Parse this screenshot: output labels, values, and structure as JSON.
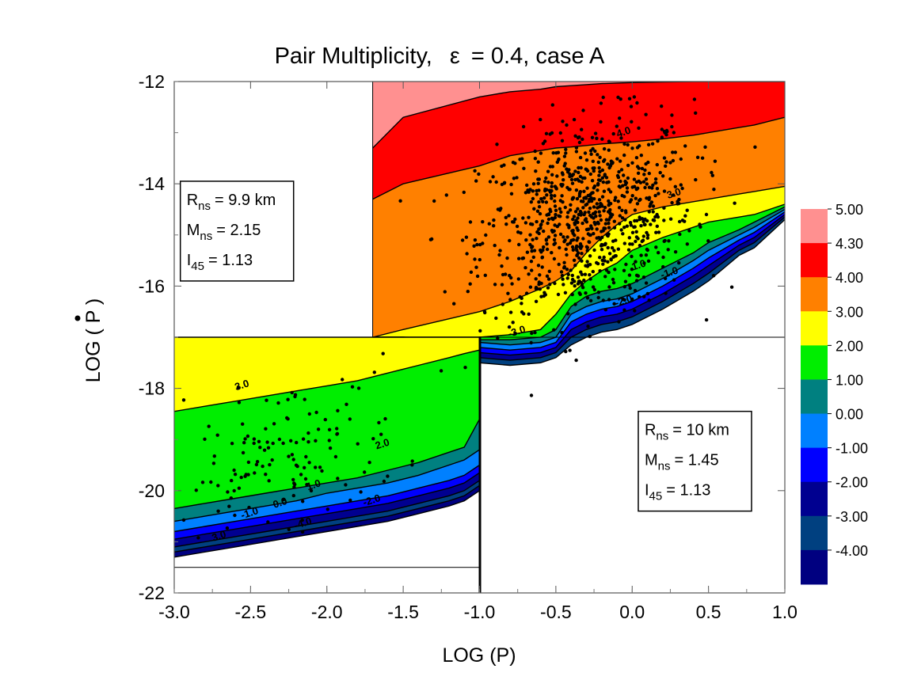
{
  "chart_data": {
    "type": "contour",
    "title_prefix": "Pair Multiplicity,",
    "title_symbol": "ε",
    "title_suffix": "= 0.4, case A",
    "xlabel": "LOG (P)",
    "ylabel_left": "LOG (",
    "ylabel_var": "P",
    "ylabel_right": ")",
    "xlim": [
      -3.0,
      1.0
    ],
    "ylim": [
      -22,
      -12
    ],
    "x_ticks": [
      {
        "v": -3.0,
        "label": "-3.0"
      },
      {
        "v": -2.5,
        "label": "-2.5"
      },
      {
        "v": -2.0,
        "label": "-2.0"
      },
      {
        "v": -1.5,
        "label": "-1.5"
      },
      {
        "v": -1.0,
        "label": "-1.0"
      },
      {
        "v": -0.5,
        "label": "-0.5"
      },
      {
        "v": 0.0,
        "label": "0.0"
      },
      {
        "v": 0.5,
        "label": "0.5"
      },
      {
        "v": 1.0,
        "label": "1.0"
      }
    ],
    "y_ticks": [
      {
        "v": -12,
        "label": "-12"
      },
      {
        "v": -14,
        "label": "-14"
      },
      {
        "v": -16,
        "label": "-16"
      },
      {
        "v": -18,
        "label": "-18"
      },
      {
        "v": -20,
        "label": "-20"
      },
      {
        "v": -22,
        "label": "-22"
      }
    ],
    "colorbar": [
      {
        "label": "5.00",
        "color": "#ff9090"
      },
      {
        "label": "4.30",
        "color": "#ff0000"
      },
      {
        "label": "4.00",
        "color": "#ff8000"
      },
      {
        "label": "3.00",
        "color": "#ffff00"
      },
      {
        "label": "2.00",
        "color": "#00ee00"
      },
      {
        "label": "1.00",
        "color": "#008080"
      },
      {
        "label": "0.00",
        "color": "#0080ff"
      },
      {
        "label": "-1.00",
        "color": "#0000ff"
      },
      {
        "label": "-2.00",
        "color": "#000090"
      },
      {
        "label": "-3.00",
        "color": "#004080"
      },
      {
        "label": "-4.00",
        "color": "#000080"
      }
    ],
    "regions": [
      {
        "name": "upper-right",
        "xmin": -1.7,
        "xmax": 1.0,
        "ymin": -17.0,
        "ymax": -12.0,
        "vertical_bottom_at": -1.0,
        "x": [
          -1.7,
          -1.5,
          -1.0,
          -0.8,
          -0.6,
          -0.5,
          -0.4,
          -0.3,
          -0.2,
          -0.1,
          0.0,
          0.2,
          0.4,
          0.5,
          0.7,
          0.8,
          1.0
        ],
        "boundaries": [
          {
            "level": "4.3",
            "y": [
              -13.3,
              -12.7,
              -12.3,
              -12.2,
              -12.15,
              -12.1,
              -12.08,
              -12.06,
              -12.04,
              -12.03,
              -12.02,
              -12.01,
              -12.0,
              -12.0,
              -12.0,
              -12.0,
              -12.0
            ]
          },
          {
            "level": "4.0",
            "y": [
              -14.3,
              -14.0,
              -13.65,
              -13.45,
              -13.35,
              -13.3,
              -13.28,
              -13.25,
              -13.22,
              -13.2,
              -13.18,
              -13.12,
              -13.05,
              -13.0,
              -12.9,
              -12.85,
              -12.7
            ]
          },
          {
            "level": "3.0",
            "y": [
              -17.0,
              -16.85,
              -16.5,
              -16.3,
              -16.05,
              -15.9,
              -15.7,
              -15.35,
              -15.05,
              -14.8,
              -14.6,
              -14.45,
              -14.35,
              -14.3,
              -14.2,
              -14.15,
              -14.05
            ]
          },
          {
            "level": "2.0",
            "y": [
              -17.0,
              -17.0,
              -17.0,
              -16.95,
              -16.85,
              -16.55,
              -16.15,
              -15.9,
              -15.7,
              -15.55,
              -15.3,
              -15.05,
              -14.85,
              -14.75,
              -14.65,
              -14.6,
              -14.4
            ]
          },
          {
            "level": "1.0",
            "y": [
              -17.0,
              -17.0,
              -17.05,
              -17.05,
              -17.0,
              -16.85,
              -16.4,
              -16.2,
              -16.1,
              -16.05,
              -15.95,
              -15.65,
              -15.35,
              -15.15,
              -14.9,
              -14.75,
              -14.45
            ]
          },
          {
            "level": "0.0",
            "y": [
              -17.0,
              -17.0,
              -17.1,
              -17.15,
              -17.1,
              -17.0,
              -16.55,
              -16.4,
              -16.3,
              -16.25,
              -16.15,
              -15.85,
              -15.5,
              -15.3,
              -15.0,
              -14.85,
              -14.5
            ]
          },
          {
            "level": "-1.0",
            "y": [
              -17.0,
              -17.0,
              -17.2,
              -17.25,
              -17.2,
              -17.1,
              -16.7,
              -16.55,
              -16.45,
              -16.4,
              -16.3,
              -16.0,
              -15.65,
              -15.45,
              -15.1,
              -14.95,
              -14.55
            ]
          },
          {
            "level": "-2.0",
            "y": [
              -17.0,
              -17.0,
              -17.3,
              -17.35,
              -17.3,
              -17.2,
              -16.85,
              -16.7,
              -16.6,
              -16.55,
              -16.45,
              -16.15,
              -15.8,
              -15.6,
              -15.2,
              -15.05,
              -14.6
            ]
          },
          {
            "level": "-3.0",
            "y": [
              -17.0,
              -17.0,
              -17.4,
              -17.45,
              -17.4,
              -17.3,
              -17.0,
              -16.85,
              -16.75,
              -16.7,
              -16.6,
              -16.3,
              -15.95,
              -15.75,
              -15.3,
              -15.15,
              -14.65
            ]
          },
          {
            "level": "-4.0",
            "y": [
              -17.0,
              -17.0,
              -17.5,
              -17.55,
              -17.5,
              -17.4,
              -17.15,
              -17.0,
              -16.9,
              -16.85,
              -16.75,
              -16.45,
              -16.1,
              -15.9,
              -15.4,
              -15.25,
              -14.7
            ]
          }
        ],
        "contour_labels": [
          {
            "text": "4.0",
            "x": -0.05,
            "y": -13.05
          },
          {
            "text": "3.0",
            "x": 0.28,
            "y": -14.25
          },
          {
            "text": "1.0",
            "x": 0.05,
            "y": -15.65
          },
          {
            "text": "-1.0",
            "x": 0.25,
            "y": -15.8
          },
          {
            "text": "-2.0",
            "x": -0.05,
            "y": -16.35
          },
          {
            "text": "-3.0",
            "x": -0.75,
            "y": -16.95
          }
        ]
      },
      {
        "name": "lower-left",
        "xmin": -3.0,
        "xmax": -1.0,
        "ymin": -21.5,
        "ymax": -17.0,
        "vertical_bottom_at": null,
        "x": [
          -3.0,
          -2.8,
          -2.6,
          -2.4,
          -2.2,
          -2.0,
          -1.8,
          -1.6,
          -1.4,
          -1.2,
          -1.1,
          -1.0
        ],
        "boundaries": [
          {
            "level": "3.0",
            "y": [
              -17.0,
              -17.0,
              -17.0,
              -17.0,
              -17.0,
              -17.0,
              -17.0,
              -17.0,
              -17.0,
              -17.0,
              -17.0,
              -17.0
            ]
          },
          {
            "level": "2.0",
            "y": [
              -18.45,
              -18.35,
              -18.25,
              -18.15,
              -18.05,
              -17.95,
              -17.85,
              -17.7,
              -17.55,
              -17.4,
              -17.32,
              -17.25
            ]
          },
          {
            "level": "1.0",
            "y": [
              -20.35,
              -20.25,
              -20.15,
              -20.05,
              -19.95,
              -19.85,
              -19.75,
              -19.6,
              -19.45,
              -19.25,
              -19.15,
              -18.6
            ]
          },
          {
            "level": "0.0",
            "y": [
              -20.6,
              -20.5,
              -20.4,
              -20.3,
              -20.2,
              -20.05,
              -19.95,
              -19.85,
              -19.7,
              -19.5,
              -19.4,
              -19.2
            ]
          },
          {
            "level": "-1.0",
            "y": [
              -20.8,
              -20.7,
              -20.6,
              -20.5,
              -20.4,
              -20.3,
              -20.2,
              -20.1,
              -19.95,
              -19.8,
              -19.7,
              -19.5
            ]
          },
          {
            "level": "-2.0",
            "y": [
              -20.95,
              -20.85,
              -20.75,
              -20.65,
              -20.55,
              -20.45,
              -20.35,
              -20.25,
              -20.1,
              -19.95,
              -19.85,
              -19.65
            ]
          },
          {
            "level": "-3.0",
            "y": [
              -21.1,
              -21.0,
              -20.9,
              -20.8,
              -20.7,
              -20.6,
              -20.5,
              -20.4,
              -20.25,
              -20.1,
              -20.0,
              -19.8
            ]
          },
          {
            "level": "-4.0",
            "y": [
              -21.2,
              -21.1,
              -21.0,
              -20.9,
              -20.8,
              -20.7,
              -20.6,
              -20.5,
              -20.35,
              -20.2,
              -20.1,
              -19.9
            ]
          },
          {
            "level": "-5.0",
            "y": [
              -21.3,
              -21.2,
              -21.1,
              -21.0,
              -20.9,
              -20.8,
              -20.7,
              -20.6,
              -20.45,
              -20.3,
              -20.2,
              -20.0
            ]
          }
        ],
        "contour_labels": [
          {
            "text": "3.0",
            "x": -2.55,
            "y": -18.0
          },
          {
            "text": "2.0",
            "x": -1.63,
            "y": -19.15
          },
          {
            "text": "1.0",
            "x": -2.08,
            "y": -19.95
          },
          {
            "text": "0.0",
            "x": -2.3,
            "y": -20.3
          },
          {
            "text": "-1.0",
            "x": -2.5,
            "y": -20.5
          },
          {
            "text": "-2.0",
            "x": -1.7,
            "y": -20.25
          },
          {
            "text": "-4.0",
            "x": -2.15,
            "y": -20.7
          },
          {
            "text": "3.0",
            "x": -2.7,
            "y": -20.95
          }
        ]
      }
    ],
    "annotations": [
      {
        "name": "left-parameter-box",
        "x": -2.96,
        "y": -15.9,
        "rows": [
          {
            "sym": "R",
            "sub": "ns",
            "val": "= 9.9 km"
          },
          {
            "sym": "M",
            "sub": "ns",
            "val": "= 2.15"
          },
          {
            "sym": "I",
            "sub": "45",
            "val": "= 1.13"
          }
        ]
      },
      {
        "name": "right-parameter-box",
        "x": 0.04,
        "y": -20.4,
        "rows": [
          {
            "sym": "R",
            "sub": "ns",
            "val": "= 10 km"
          },
          {
            "sym": "M",
            "sub": "ns",
            "val": "= 1.45"
          },
          {
            "sym": "I",
            "sub": "45",
            "val": "= 1.13"
          }
        ]
      }
    ]
  }
}
